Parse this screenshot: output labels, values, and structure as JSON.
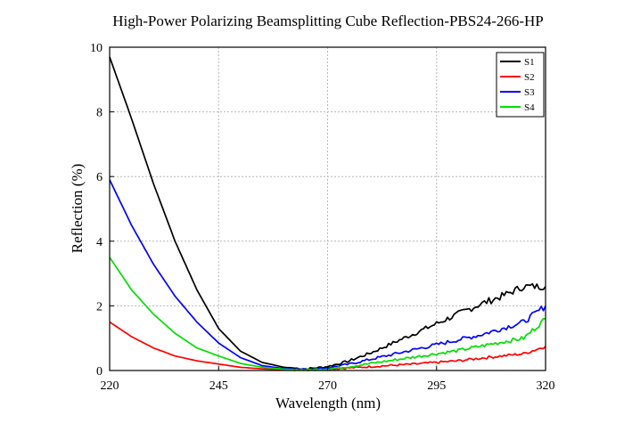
{
  "chart_data": {
    "type": "line",
    "title": "High-Power Polarizing Beamsplitting Cube Reflection-PBS24-266-HP",
    "xlabel": "Wavelength (nm)",
    "ylabel": "Reflection (%)",
    "xlim": [
      220,
      320
    ],
    "ylim": [
      0,
      10
    ],
    "xticks": [
      220,
      245,
      270,
      295,
      320
    ],
    "yticks": [
      0,
      2,
      4,
      6,
      8,
      10
    ],
    "grid": true,
    "legend_position": "top-right",
    "series": [
      {
        "name": "S1",
        "color": "#000000",
        "x": [
          220,
          225,
          230,
          235,
          240,
          245,
          250,
          255,
          260,
          265,
          270,
          275,
          280,
          285,
          290,
          295,
          300,
          305,
          310,
          315,
          320
        ],
        "y": [
          9.7,
          7.8,
          5.8,
          4.0,
          2.5,
          1.3,
          0.6,
          0.25,
          0.1,
          0.05,
          0.12,
          0.3,
          0.55,
          0.85,
          1.15,
          1.45,
          1.75,
          2.05,
          2.3,
          2.6,
          2.6
        ]
      },
      {
        "name": "S2",
        "color": "#ff0000",
        "x": [
          220,
          225,
          230,
          235,
          240,
          245,
          250,
          255,
          260,
          265,
          270,
          275,
          280,
          285,
          290,
          295,
          300,
          305,
          310,
          315,
          320
        ],
        "y": [
          1.5,
          1.05,
          0.7,
          0.45,
          0.3,
          0.2,
          0.1,
          0.05,
          0.02,
          0.02,
          0.04,
          0.08,
          0.12,
          0.16,
          0.2,
          0.25,
          0.3,
          0.38,
          0.45,
          0.52,
          0.75
        ]
      },
      {
        "name": "S3",
        "color": "#0000ff",
        "x": [
          220,
          225,
          230,
          235,
          240,
          245,
          250,
          255,
          260,
          265,
          270,
          275,
          280,
          285,
          290,
          295,
          300,
          305,
          310,
          315,
          320
        ],
        "y": [
          5.9,
          4.5,
          3.3,
          2.3,
          1.5,
          0.85,
          0.4,
          0.15,
          0.06,
          0.03,
          0.08,
          0.2,
          0.35,
          0.5,
          0.65,
          0.8,
          0.95,
          1.1,
          1.3,
          1.5,
          2.0
        ]
      },
      {
        "name": "S4",
        "color": "#00dd00",
        "x": [
          220,
          225,
          230,
          235,
          240,
          245,
          250,
          255,
          260,
          265,
          270,
          275,
          280,
          285,
          290,
          295,
          300,
          305,
          310,
          315,
          320
        ],
        "y": [
          3.5,
          2.5,
          1.75,
          1.15,
          0.7,
          0.45,
          0.22,
          0.1,
          0.04,
          0.02,
          0.05,
          0.12,
          0.22,
          0.32,
          0.42,
          0.52,
          0.62,
          0.75,
          0.88,
          1.0,
          1.6
        ]
      }
    ]
  }
}
